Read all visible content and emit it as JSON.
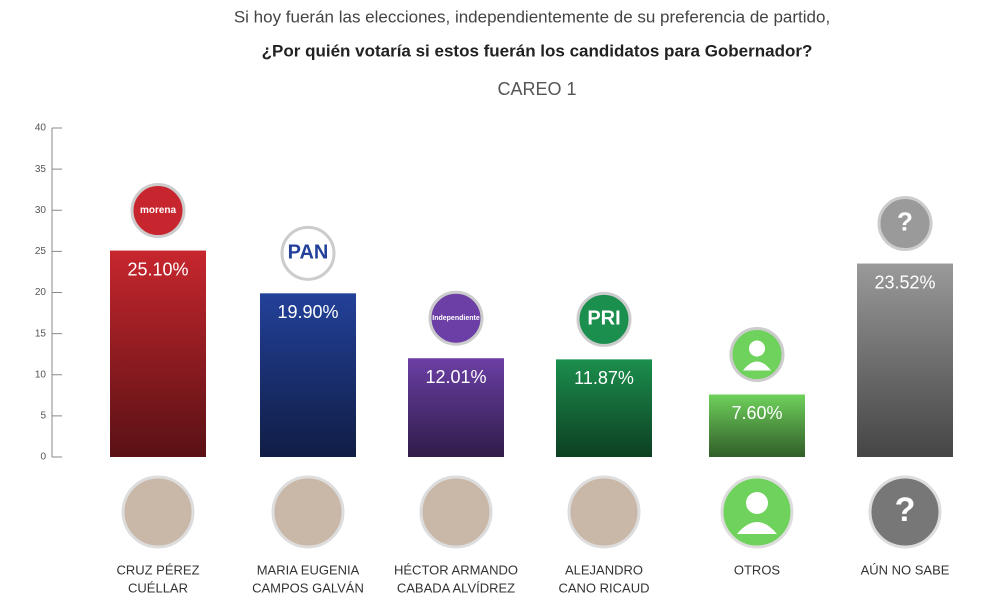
{
  "chart_data": {
    "type": "bar",
    "title": "Si hoy fuerán las elecciones, independientemente de su preferencia de partido,",
    "subtitle": "¿Por quién votaría si estos fuerán los candidatos para Gobernador?",
    "caption": "CAREO 1",
    "categories": [
      [
        "CRUZ PÉREZ",
        "CUÉLLAR"
      ],
      [
        "MARIA EUGENIA",
        "CAMPOS GALVÁN"
      ],
      [
        "HÉCTOR ARMANDO",
        "CABADA ALVÍDREZ"
      ],
      [
        "ALEJANDRO",
        "CANO RICAUD"
      ],
      [
        "OTROS"
      ],
      [
        "AÚN NO SABE"
      ]
    ],
    "values": [
      25.1,
      19.9,
      12.01,
      11.87,
      7.6,
      23.52
    ],
    "value_labels": [
      "25.10%",
      "19.90%",
      "12.01%",
      "11.87%",
      "7.60%",
      "23.52%"
    ],
    "colors": [
      "#c8262e",
      "#23419a",
      "#6b3fa5",
      "#1b8f4d",
      "#6fd25c",
      "#9a9a9a"
    ],
    "logos": [
      "morena",
      "PAN",
      "Independiente",
      "PRI",
      null,
      "?"
    ],
    "ylim": [
      0,
      40
    ],
    "yticks": [
      0,
      5,
      10,
      15,
      20,
      25,
      30,
      35,
      40
    ]
  }
}
